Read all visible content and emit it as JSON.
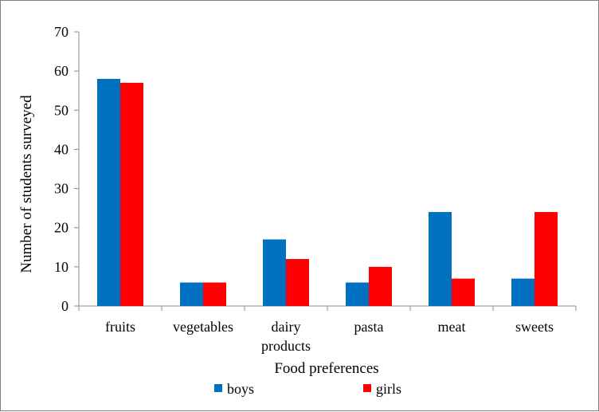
{
  "chart_data": {
    "type": "bar",
    "title": "",
    "xlabel": "Food preferences",
    "ylabel": "Number of students surveyed",
    "ylim": [
      0,
      70
    ],
    "yticks": [
      0,
      10,
      20,
      30,
      40,
      50,
      60,
      70
    ],
    "categories": [
      [
        "fruits"
      ],
      [
        "vegetables"
      ],
      [
        "dairy",
        "products"
      ],
      [
        "pasta"
      ],
      [
        "meat"
      ],
      [
        "sweets"
      ]
    ],
    "series": [
      {
        "name": "boys",
        "color": "#0070C0",
        "values": [
          58,
          6,
          17,
          6,
          24,
          7
        ]
      },
      {
        "name": "girls",
        "color": "#FF0000",
        "values": [
          57,
          6,
          12,
          10,
          7,
          24
        ]
      }
    ],
    "grid": false,
    "legend": "bottom"
  }
}
